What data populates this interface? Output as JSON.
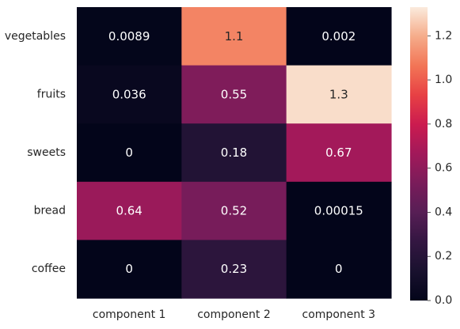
{
  "chart_data": {
    "type": "heatmap",
    "rows": [
      "vegetables",
      "fruits",
      "sweets",
      "bread",
      "coffee"
    ],
    "columns": [
      "component 1",
      "component 2",
      "component 3"
    ],
    "values": [
      [
        0.0089,
        1.1,
        0.002
      ],
      [
        0.036,
        0.55,
        1.3
      ],
      [
        0,
        0.18,
        0.67
      ],
      [
        0.64,
        0.52,
        0.00015
      ],
      [
        0,
        0.23,
        0
      ]
    ],
    "annotations": [
      [
        "0.0089",
        "1.1",
        "0.002"
      ],
      [
        "0.036",
        "0.55",
        "1.3"
      ],
      [
        "0",
        "0.18",
        "0.67"
      ],
      [
        "0.64",
        "0.52",
        "0.00015"
      ],
      [
        "0",
        "0.23",
        "0"
      ]
    ],
    "colormap": "rocket",
    "vmin": 0,
    "vmax": 1.33,
    "colorbar_ticks": [
      "0.0",
      "0.2",
      "0.4",
      "0.6",
      "0.8",
      "1.0",
      "1.2"
    ],
    "colorbar_tick_values": [
      0,
      0.2,
      0.4,
      0.6,
      0.8,
      1.0,
      1.2
    ],
    "grid": false,
    "title": "",
    "xlabel": "",
    "ylabel": ""
  }
}
